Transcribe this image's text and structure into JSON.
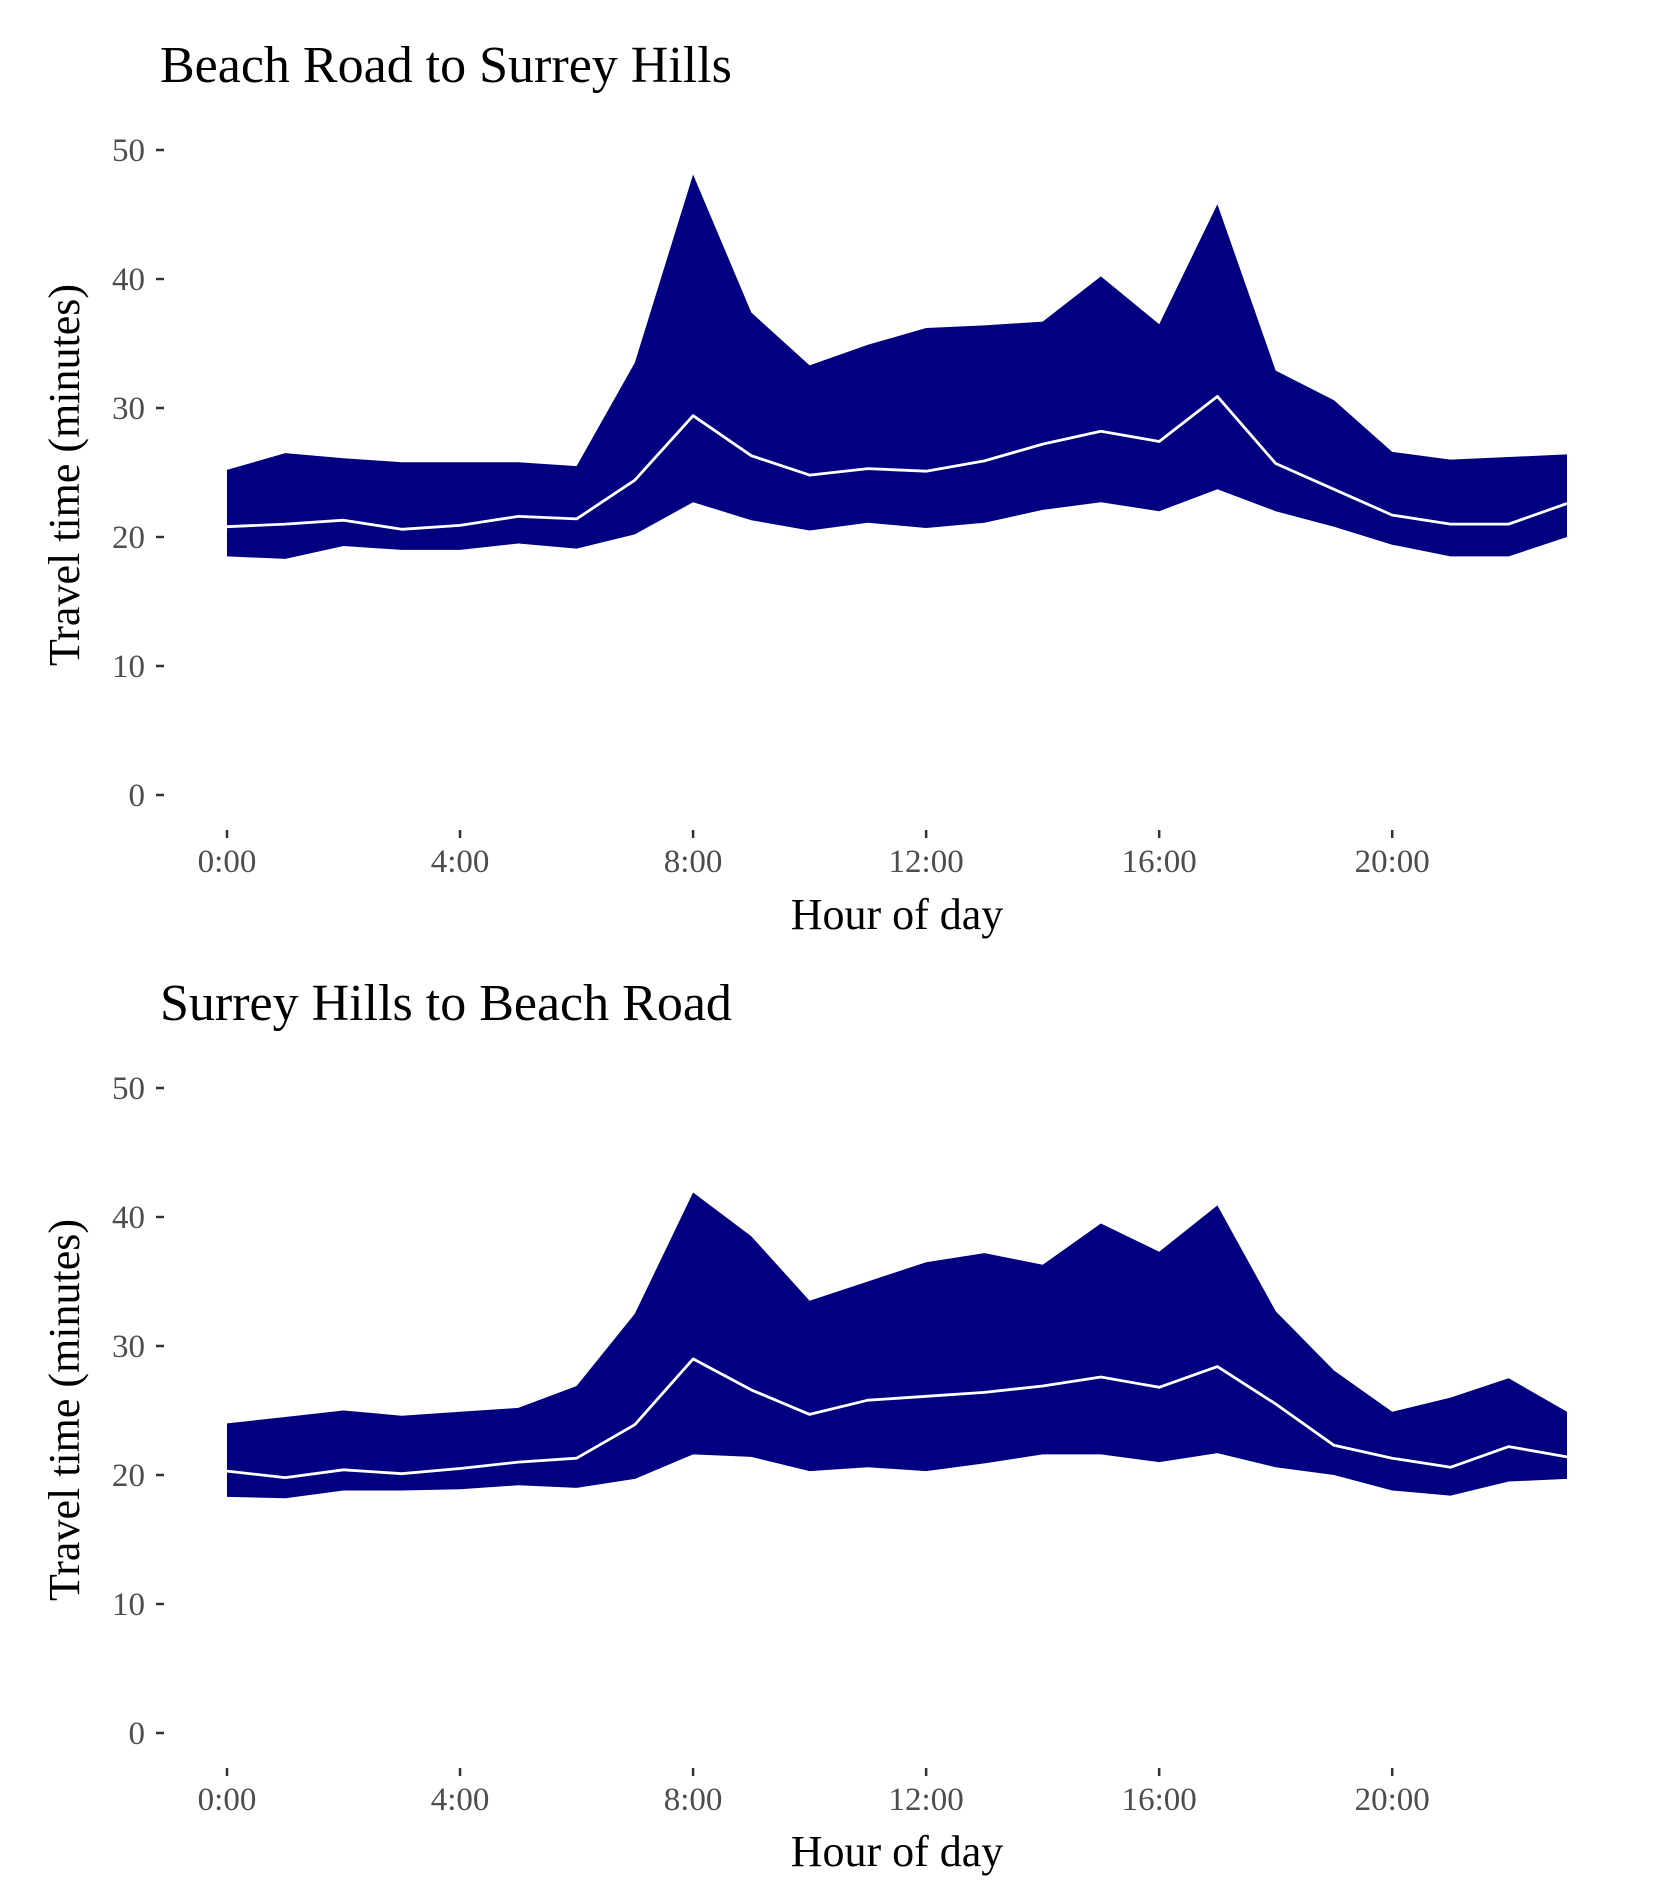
{
  "chart_data": [
    {
      "type": "area",
      "title": "Beach Road to Surrey Hills",
      "xlabel": "Hour of day",
      "ylabel": "Travel time (minutes)",
      "x_unit": "hour",
      "xlim": [
        0,
        23
      ],
      "ylim": [
        0,
        50
      ],
      "x_ticks": [
        0,
        4,
        8,
        12,
        16,
        20
      ],
      "x_tick_labels": [
        "0:00",
        "4:00",
        "8:00",
        "12:00",
        "16:00",
        "20:00"
      ],
      "y_ticks": [
        0,
        10,
        20,
        30,
        40,
        50
      ],
      "y_tick_labels": [
        "0",
        "10",
        "20",
        "30",
        "40",
        "50"
      ],
      "grid": false,
      "legend": "none",
      "band_color": "#000080",
      "line_color": "#ffffff",
      "x": [
        0,
        1,
        2,
        3,
        4,
        5,
        6,
        7,
        8,
        9,
        10,
        11,
        12,
        13,
        14,
        15,
        16,
        17,
        18,
        19,
        20,
        21,
        22,
        23
      ],
      "lower": [
        18.5,
        18.3,
        19.3,
        19.0,
        19.0,
        19.5,
        19.1,
        20.2,
        22.7,
        21.3,
        20.5,
        21.1,
        20.7,
        21.1,
        22.1,
        22.7,
        22.0,
        23.7,
        22.0,
        20.8,
        19.4,
        18.5,
        18.5,
        20.0
      ],
      "median": [
        20.8,
        21.0,
        21.3,
        20.6,
        20.9,
        21.6,
        21.4,
        24.4,
        29.4,
        26.3,
        24.8,
        25.3,
        25.1,
        25.9,
        27.2,
        28.2,
        27.4,
        30.9,
        25.7,
        23.7,
        21.7,
        21.0,
        21.0,
        22.6
      ],
      "upper": [
        25.2,
        26.5,
        26.1,
        25.8,
        25.8,
        25.8,
        25.5,
        33.5,
        48.1,
        37.4,
        33.3,
        34.9,
        36.2,
        36.4,
        36.7,
        40.2,
        36.5,
        45.8,
        32.9,
        30.6,
        26.6,
        26.0,
        26.2,
        26.4
      ]
    },
    {
      "type": "area",
      "title": "Surrey Hills to Beach Road",
      "xlabel": "Hour of day",
      "ylabel": "Travel time (minutes)",
      "x_unit": "hour",
      "xlim": [
        0,
        23
      ],
      "ylim": [
        0,
        50
      ],
      "x_ticks": [
        0,
        4,
        8,
        12,
        16,
        20
      ],
      "x_tick_labels": [
        "0:00",
        "4:00",
        "8:00",
        "12:00",
        "16:00",
        "20:00"
      ],
      "y_ticks": [
        0,
        10,
        20,
        30,
        40,
        50
      ],
      "y_tick_labels": [
        "0",
        "10",
        "20",
        "30",
        "40",
        "50"
      ],
      "grid": false,
      "legend": "none",
      "band_color": "#000080",
      "line_color": "#ffffff",
      "x": [
        0,
        1,
        2,
        3,
        4,
        5,
        6,
        7,
        8,
        9,
        10,
        11,
        12,
        13,
        14,
        15,
        16,
        17,
        18,
        19,
        20,
        21,
        22,
        23
      ],
      "lower": [
        18.3,
        18.2,
        18.8,
        18.8,
        18.9,
        19.2,
        19.0,
        19.7,
        21.6,
        21.4,
        20.3,
        20.6,
        20.3,
        20.9,
        21.6,
        21.6,
        21.0,
        21.7,
        20.6,
        20.0,
        18.8,
        18.4,
        19.5,
        19.7
      ],
      "median": [
        20.3,
        19.8,
        20.4,
        20.1,
        20.5,
        21.0,
        21.3,
        23.9,
        29.0,
        26.6,
        24.7,
        25.8,
        26.1,
        26.4,
        26.9,
        27.6,
        26.8,
        28.4,
        25.5,
        22.3,
        21.3,
        20.6,
        22.2,
        21.4
      ],
      "upper": [
        24.0,
        24.5,
        25.0,
        24.6,
        24.9,
        25.2,
        26.9,
        32.5,
        41.9,
        38.5,
        33.5,
        35.0,
        36.5,
        37.2,
        36.3,
        39.5,
        37.3,
        40.9,
        32.7,
        28.1,
        24.9,
        26.0,
        27.5,
        24.9
      ]
    }
  ]
}
